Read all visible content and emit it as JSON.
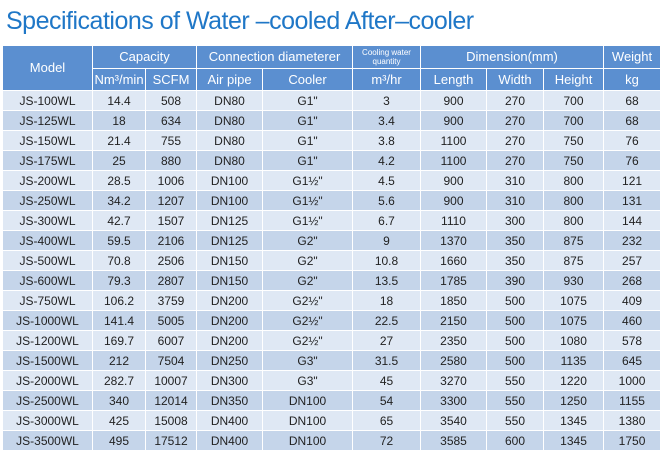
{
  "title": "Specifications of Water –cooled After–cooler",
  "headers": {
    "model": "Model",
    "capacity": "Capacity",
    "capacity_nm3": "Nm³/min",
    "capacity_scfm": "SCFM",
    "connection": "Connection diameterer",
    "air_pipe": "Air pipe",
    "cooler": "Cooler",
    "cooling_water": "Cooling water quantity",
    "cooling_unit": "m³/hr",
    "dimension": "Dimension(mm)",
    "length": "Length",
    "width": "Width",
    "height": "Height",
    "weight": "Weight",
    "weight_unit": "kg"
  },
  "rows": [
    {
      "model": "JS-100WL",
      "nm3": "14.4",
      "scfm": "508",
      "air_pipe": "DN80",
      "cooler": "G1\"",
      "water": "3",
      "length": "900",
      "width": "270",
      "height": "700",
      "weight": "68"
    },
    {
      "model": "JS-125WL",
      "nm3": "18",
      "scfm": "634",
      "air_pipe": "DN80",
      "cooler": "G1\"",
      "water": "3.4",
      "length": "900",
      "width": "270",
      "height": "700",
      "weight": "68"
    },
    {
      "model": "JS-150WL",
      "nm3": "21.4",
      "scfm": "755",
      "air_pipe": "DN80",
      "cooler": "G1\"",
      "water": "3.8",
      "length": "1100",
      "width": "270",
      "height": "750",
      "weight": "76"
    },
    {
      "model": "JS-175WL",
      "nm3": "25",
      "scfm": "880",
      "air_pipe": "DN80",
      "cooler": "G1\"",
      "water": "4.2",
      "length": "1100",
      "width": "270",
      "height": "750",
      "weight": "76"
    },
    {
      "model": "JS-200WL",
      "nm3": "28.5",
      "scfm": "1006",
      "air_pipe": "DN100",
      "cooler": "G1½\"",
      "water": "4.5",
      "length": "900",
      "width": "310",
      "height": "800",
      "weight": "121"
    },
    {
      "model": "JS-250WL",
      "nm3": "34.2",
      "scfm": "1207",
      "air_pipe": "DN100",
      "cooler": "G1½\"",
      "water": "5.6",
      "length": "900",
      "width": "310",
      "height": "800",
      "weight": "131"
    },
    {
      "model": "JS-300WL",
      "nm3": "42.7",
      "scfm": "1507",
      "air_pipe": "DN125",
      "cooler": "G1½\"",
      "water": "6.7",
      "length": "1110",
      "width": "300",
      "height": "800",
      "weight": "144"
    },
    {
      "model": "JS-400WL",
      "nm3": "59.5",
      "scfm": "2106",
      "air_pipe": "DN125",
      "cooler": "G2\"",
      "water": "9",
      "length": "1370",
      "width": "350",
      "height": "875",
      "weight": "232"
    },
    {
      "model": "JS-500WL",
      "nm3": "70.8",
      "scfm": "2506",
      "air_pipe": "DN150",
      "cooler": "G2\"",
      "water": "10.8",
      "length": "1660",
      "width": "350",
      "height": "875",
      "weight": "257"
    },
    {
      "model": "JS-600WL",
      "nm3": "79.3",
      "scfm": "2807",
      "air_pipe": "DN150",
      "cooler": "G2\"",
      "water": "13.5",
      "length": "1785",
      "width": "390",
      "height": "930",
      "weight": "268"
    },
    {
      "model": "JS-750WL",
      "nm3": "106.2",
      "scfm": "3759",
      "air_pipe": "DN200",
      "cooler": "G2½\"",
      "water": "18",
      "length": "1850",
      "width": "500",
      "height": "1075",
      "weight": "409"
    },
    {
      "model": "JS-1000WL",
      "nm3": "141.4",
      "scfm": "5005",
      "air_pipe": "DN200",
      "cooler": "G2½\"",
      "water": "22.5",
      "length": "2150",
      "width": "500",
      "height": "1075",
      "weight": "460"
    },
    {
      "model": "JS-1200WL",
      "nm3": "169.7",
      "scfm": "6007",
      "air_pipe": "DN200",
      "cooler": "G2½\"",
      "water": "27",
      "length": "2350",
      "width": "500",
      "height": "1080",
      "weight": "578"
    },
    {
      "model": "JS-1500WL",
      "nm3": "212",
      "scfm": "7504",
      "air_pipe": "DN250",
      "cooler": "G3\"",
      "water": "31.5",
      "length": "2580",
      "width": "500",
      "height": "1135",
      "weight": "645"
    },
    {
      "model": "JS-2000WL",
      "nm3": "282.7",
      "scfm": "10007",
      "air_pipe": "DN300",
      "cooler": "G3\"",
      "water": "45",
      "length": "3270",
      "width": "550",
      "height": "1220",
      "weight": "1000"
    },
    {
      "model": "JS-2500WL",
      "nm3": "340",
      "scfm": "12014",
      "air_pipe": "DN350",
      "cooler": "DN100",
      "water": "54",
      "length": "3300",
      "width": "550",
      "height": "1250",
      "weight": "1155"
    },
    {
      "model": "JS-3000WL",
      "nm3": "425",
      "scfm": "15008",
      "air_pipe": "DN400",
      "cooler": "DN100",
      "water": "65",
      "length": "3540",
      "width": "550",
      "height": "1345",
      "weight": "1380"
    },
    {
      "model": "JS-3500WL",
      "nm3": "495",
      "scfm": "17512",
      "air_pipe": "DN400",
      "cooler": "DN100",
      "water": "72",
      "length": "3585",
      "width": "600",
      "height": "1345",
      "weight": "1750"
    }
  ]
}
